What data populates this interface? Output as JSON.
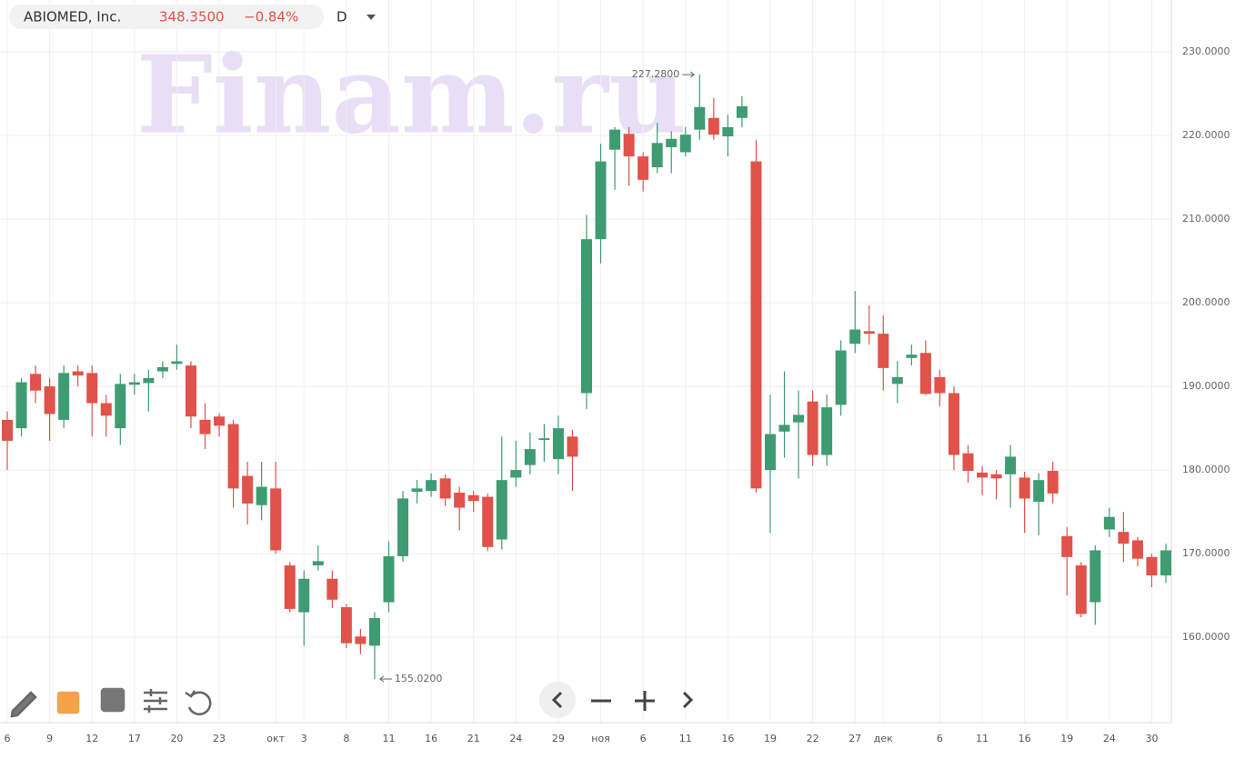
{
  "header": {
    "name": "ABIOMED, Inc.",
    "price": "348.3500",
    "change": "−0.84%",
    "interval": "D"
  },
  "watermark": "Finam.ru",
  "chart_data": {
    "type": "candlestick",
    "categories": [
      "6",
      null,
      null,
      "9",
      null,
      null,
      "12",
      null,
      null,
      "17",
      null,
      null,
      "20",
      null,
      null,
      "23",
      null,
      null,
      null,
      "окт",
      null,
      "3",
      null,
      null,
      "8",
      null,
      null,
      "11",
      null,
      null,
      "16",
      null,
      null,
      "21",
      null,
      null,
      "24",
      null,
      null,
      "29",
      null,
      null,
      "ноя",
      null,
      null,
      "6",
      null,
      null,
      "11",
      null,
      null,
      "16",
      null,
      null,
      "19",
      null,
      null,
      "22",
      null,
      null,
      "27",
      null,
      "дек",
      null,
      null,
      null,
      "6",
      null,
      null,
      "11",
      null,
      null,
      "16",
      null,
      null,
      "19",
      null,
      null,
      "24",
      null,
      null,
      "30",
      null
    ],
    "open": [
      186,
      185,
      191.5,
      190,
      186,
      191.8,
      191.6,
      188,
      185,
      190.2,
      190.4,
      191.8,
      192.7,
      192.5,
      186,
      186.4,
      185.5,
      179.3,
      175.8,
      177.8,
      168.6,
      163,
      168.6,
      167,
      163.6,
      160.1,
      159,
      164.2,
      169.7,
      177.4,
      177.5,
      179,
      177.3,
      177,
      176.8,
      171.7,
      179.1,
      180.6,
      183.6,
      181.3,
      184,
      189.2,
      207.6,
      218.3,
      220.2,
      217.5,
      216.2,
      218.6,
      218,
      220.7,
      222.1,
      219.9,
      222.1,
      216.9,
      180,
      184.6,
      185.7,
      188.2,
      181.8,
      187.8,
      195.1,
      196.6,
      196.3,
      190.3,
      193.4,
      194,
      191.1,
      189.2,
      182,
      179.7,
      179.5,
      179.5,
      179.1,
      176.2,
      179.9,
      172.1,
      168.6,
      164.2,
      172.9,
      172.6,
      171.6,
      169.6,
      167.4
    ],
    "high": [
      187,
      191,
      192.5,
      191,
      192.5,
      192.5,
      192.5,
      189,
      191.5,
      191.5,
      192,
      193,
      195,
      193,
      188,
      186.8,
      186,
      181,
      181,
      181,
      169,
      168,
      171,
      168,
      164,
      161,
      163,
      171.5,
      177.5,
      178.8,
      179.6,
      179.5,
      178,
      177.5,
      177.2,
      184,
      183.5,
      184.5,
      185.5,
      186.5,
      184.8,
      210.5,
      219,
      221,
      221,
      218,
      221.5,
      220.5,
      221,
      227.28,
      224.5,
      222.5,
      224.7,
      219.5,
      189,
      191.8,
      189.5,
      189.5,
      189,
      195.5,
      201.4,
      199.7,
      198.5,
      193,
      195,
      195.5,
      192,
      190,
      183,
      180.5,
      180,
      183,
      179.8,
      179.6,
      181,
      173.2,
      169,
      171,
      175.5,
      175,
      172,
      170,
      171.2
    ],
    "low": [
      180,
      184,
      188,
      183.5,
      185,
      190,
      184,
      184,
      183,
      189,
      187,
      191,
      192,
      185,
      182.5,
      184,
      175.5,
      173.5,
      174,
      170,
      163,
      159,
      168,
      163.5,
      158.7,
      158,
      155.02,
      163,
      169,
      176,
      176.8,
      175.7,
      172.8,
      175,
      170.3,
      170.5,
      178,
      179.5,
      181,
      179.5,
      177.5,
      187.3,
      204.7,
      213.5,
      214,
      213.3,
      215.5,
      215.5,
      217.5,
      219.5,
      219.5,
      217.5,
      221,
      177.3,
      172.5,
      181.5,
      179,
      180.5,
      180.5,
      186.5,
      194,
      195,
      189.5,
      188,
      192.5,
      189,
      187.6,
      180,
      178.5,
      177,
      176.5,
      175.5,
      172.5,
      172.2,
      176,
      165,
      162.4,
      161.5,
      172,
      169,
      168.5,
      166,
      166.5
    ],
    "close": [
      183.5,
      190.5,
      189.5,
      186.7,
      191.6,
      191.3,
      188,
      186.5,
      190.3,
      190.5,
      191,
      192.3,
      193,
      186.4,
      184.3,
      185.3,
      177.8,
      176,
      178,
      170.4,
      163.4,
      167,
      169.1,
      164.5,
      159.3,
      159.2,
      162.3,
      169.7,
      176.6,
      177.8,
      178.8,
      176.6,
      175.5,
      176.3,
      170.8,
      178.8,
      180,
      182.5,
      183.8,
      185,
      181.6,
      207.6,
      216.9,
      220.7,
      217.5,
      214.7,
      219.1,
      219.6,
      220.1,
      223.4,
      220.1,
      221,
      223.5,
      177.8,
      184.3,
      185.4,
      186.6,
      181.8,
      187.5,
      194.3,
      196.8,
      196.3,
      192.2,
      191.1,
      193.8,
      189.1,
      189.2,
      181.8,
      179.9,
      179.1,
      179,
      181.6,
      176.6,
      178.8,
      177.2,
      169.6,
      162.8,
      170.4,
      174.4,
      171.2,
      169.4,
      167.4,
      170.4
    ],
    "up_color": "#3f9b72",
    "down_color": "#e0524a",
    "ylim": [
      149.8,
      236.2
    ],
    "yticks": [
      {
        "value": 160,
        "label": "160.0000"
      },
      {
        "value": 170,
        "label": "170.0000"
      },
      {
        "value": 180,
        "label": "180.0000"
      },
      {
        "value": 190,
        "label": "190.0000"
      },
      {
        "value": 200,
        "label": "200.0000"
      },
      {
        "value": 210,
        "label": "210.0000"
      },
      {
        "value": 220,
        "label": "220.0000"
      },
      {
        "value": 230,
        "label": "230.0000"
      }
    ],
    "grid": true,
    "high_annotation": {
      "value": 227.28,
      "label": "227.2800"
    },
    "low_annotation": {
      "value": 155.02,
      "label": "155.0200"
    }
  }
}
